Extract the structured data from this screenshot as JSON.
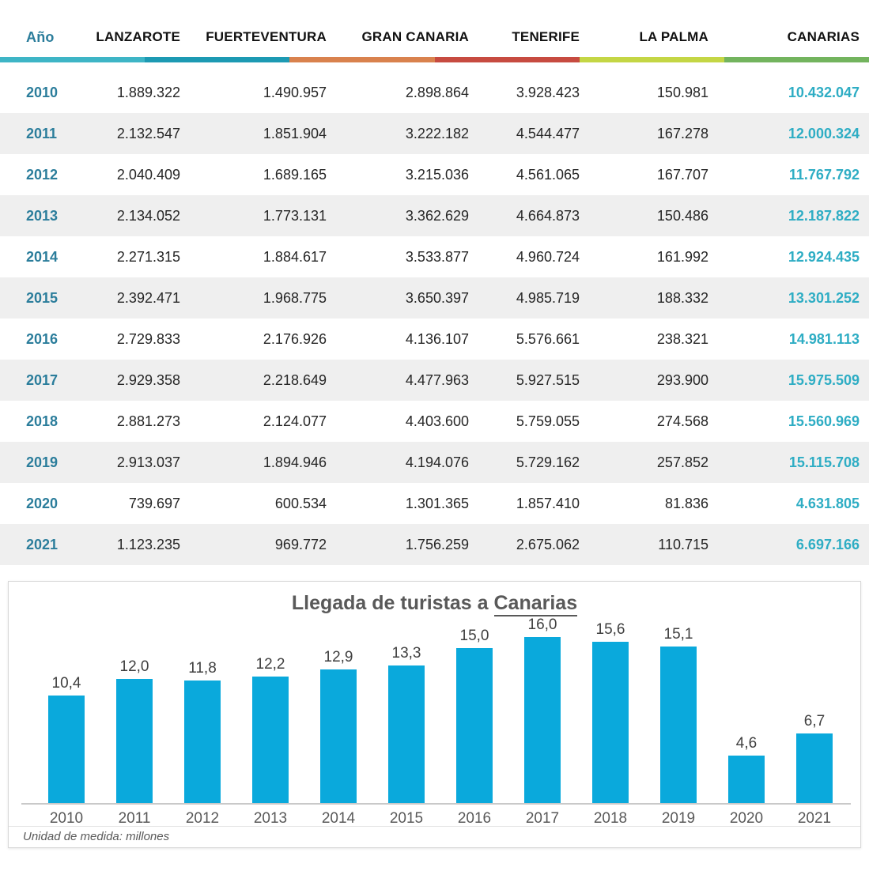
{
  "table": {
    "columns": [
      "Año",
      "LANZAROTE",
      "FUERTEVENTURA",
      "GRAN CANARIA",
      "TENERIFE",
      "LA PALMA",
      "CANARIAS"
    ],
    "accent_bar_colors": [
      "#3eb5c6",
      "#1d9ab3",
      "#d9824e",
      "#c74b40",
      "#c4d645",
      "#73b45e"
    ],
    "year_color": "#2b7d9b",
    "total_color": "#2eadc4",
    "rows": [
      {
        "year": "2010",
        "values": [
          "1.889.322",
          "1.490.957",
          "2.898.864",
          "3.928.423",
          "150.981"
        ],
        "total": "10.432.047"
      },
      {
        "year": "2011",
        "values": [
          "2.132.547",
          "1.851.904",
          "3.222.182",
          "4.544.477",
          "167.278"
        ],
        "total": "12.000.324"
      },
      {
        "year": "2012",
        "values": [
          "2.040.409",
          "1.689.165",
          "3.215.036",
          "4.561.065",
          "167.707"
        ],
        "total": "11.767.792"
      },
      {
        "year": "2013",
        "values": [
          "2.134.052",
          "1.773.131",
          "3.362.629",
          "4.664.873",
          "150.486"
        ],
        "total": "12.187.822"
      },
      {
        "year": "2014",
        "values": [
          "2.271.315",
          "1.884.617",
          "3.533.877",
          "4.960.724",
          "161.992"
        ],
        "total": "12.924.435"
      },
      {
        "year": "2015",
        "values": [
          "2.392.471",
          "1.968.775",
          "3.650.397",
          "4.985.719",
          "188.332"
        ],
        "total": "13.301.252"
      },
      {
        "year": "2016",
        "values": [
          "2.729.833",
          "2.176.926",
          "4.136.107",
          "5.576.661",
          "238.321"
        ],
        "total": "14.981.113"
      },
      {
        "year": "2017",
        "values": [
          "2.929.358",
          "2.218.649",
          "4.477.963",
          "5.927.515",
          "293.900"
        ],
        "total": "15.975.509"
      },
      {
        "year": "2018",
        "values": [
          "2.881.273",
          "2.124.077",
          "4.403.600",
          "5.759.055",
          "274.568"
        ],
        "total": "15.560.969"
      },
      {
        "year": "2019",
        "values": [
          "2.913.037",
          "1.894.946",
          "4.194.076",
          "5.729.162",
          "257.852"
        ],
        "total": "15.115.708"
      },
      {
        "year": "2020",
        "values": [
          "739.697",
          "600.534",
          "1.301.365",
          "1.857.410",
          "81.836"
        ],
        "total": "4.631.805"
      },
      {
        "year": "2021",
        "values": [
          "1.123.235",
          "969.772",
          "1.756.259",
          "2.675.062",
          "110.715"
        ],
        "total": "6.697.166"
      }
    ]
  },
  "chart_data": {
    "type": "bar",
    "title": "Llegada de turistas a Canarias",
    "title_plain": "Llegada de turistas a ",
    "title_underlined": "Canarias",
    "categories": [
      "2010",
      "2011",
      "2012",
      "2013",
      "2014",
      "2015",
      "2016",
      "2017",
      "2018",
      "2019",
      "2020",
      "2021"
    ],
    "values": [
      10.4,
      12.0,
      11.8,
      12.2,
      12.9,
      13.3,
      15.0,
      16.0,
      15.6,
      15.1,
      4.6,
      6.7
    ],
    "value_labels": [
      "10,4",
      "12,0",
      "11,8",
      "12,2",
      "12,9",
      "13,3",
      "15,0",
      "16,0",
      "15,6",
      "15,1",
      "4,6",
      "6,7"
    ],
    "bar_color": "#0aa9dc",
    "xlabel": "",
    "ylabel": "",
    "ylim": [
      0,
      17
    ],
    "grid": false,
    "legend": "none",
    "footnote": "Unidad de medida: millones",
    "unit": "millones"
  }
}
